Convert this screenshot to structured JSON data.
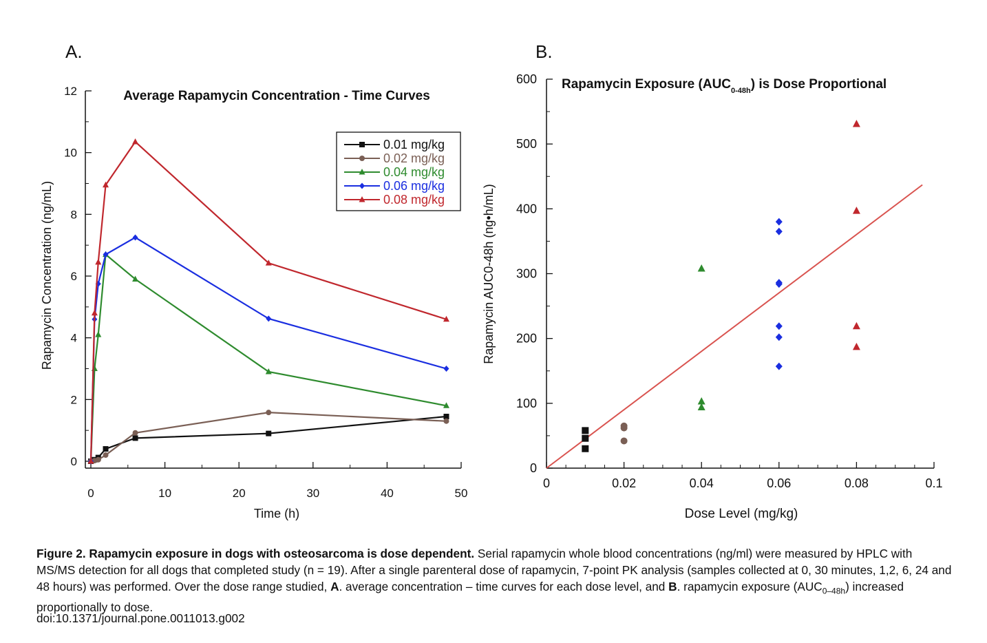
{
  "panel_a_label": "A.",
  "panel_b_label": "B.",
  "chart_data": [
    {
      "type": "line",
      "title": "Average Rapamycin Concentration - Time Curves",
      "xlabel": "Time (h)",
      "ylabel": "Rapamycin Concentration (ng/mL)",
      "xlim": [
        0,
        50
      ],
      "ylim": [
        0,
        12
      ],
      "xticks": [
        "0",
        "10",
        "20",
        "30",
        "40",
        "50"
      ],
      "yticks": [
        "0",
        "2",
        "4",
        "6",
        "8",
        "10",
        "12"
      ],
      "grid": false,
      "legend_position": "top-right",
      "x": [
        0,
        0.5,
        1,
        2,
        6,
        24,
        48
      ],
      "series": [
        {
          "name": "0.01 mg/kg",
          "color": "#111111",
          "marker": "square",
          "values": [
            0,
            0.05,
            0.12,
            0.4,
            0.75,
            0.9,
            1.45
          ]
        },
        {
          "name": "0.02 mg/kg",
          "color": "#7a5f55",
          "marker": "circle",
          "values": [
            0,
            0.02,
            0.05,
            0.2,
            0.92,
            1.58,
            1.3
          ]
        },
        {
          "name": "0.04 mg/kg",
          "color": "#2e8b2e",
          "marker": "triangle",
          "values": [
            0,
            3.0,
            4.1,
            6.7,
            5.9,
            2.9,
            1.8
          ]
        },
        {
          "name": "0.06 mg/kg",
          "color": "#1a2ee0",
          "marker": "diamond",
          "values": [
            0,
            4.6,
            5.75,
            6.7,
            7.25,
            4.62,
            3.0
          ]
        },
        {
          "name": "0.08 mg/kg",
          "color": "#c0272d",
          "marker": "triangle",
          "values": [
            0,
            4.8,
            6.45,
            8.95,
            10.35,
            6.42,
            4.6
          ]
        }
      ]
    },
    {
      "type": "scatter",
      "title_main": "Rapamycin Exposure (AUC",
      "title_sub": "0-48h",
      "title_end": ") is Dose Proportional",
      "xlabel": "Dose Level (mg/kg)",
      "ylabel": "Rapamycin AUC0-48h (ng•h/mL)",
      "xlim": [
        0,
        0.1
      ],
      "ylim": [
        0,
        600
      ],
      "xticks": [
        "0",
        "0.02",
        "0.04",
        "0.06",
        "0.08",
        "0.1"
      ],
      "yticks": [
        "0",
        "100",
        "200",
        "300",
        "400",
        "500",
        "600"
      ],
      "grid": false,
      "series": [
        {
          "dose": 0.01,
          "color": "#111111",
          "marker": "square",
          "values": [
            58,
            46,
            30
          ]
        },
        {
          "dose": 0.02,
          "color": "#7a5f55",
          "marker": "circle",
          "values": [
            65,
            62,
            42
          ]
        },
        {
          "dose": 0.04,
          "color": "#2e8b2e",
          "marker": "triangle",
          "values": [
            308,
            103,
            94
          ]
        },
        {
          "dose": 0.06,
          "color": "#1a2ee0",
          "marker": "diamond",
          "values": [
            380,
            365,
            286,
            284,
            219,
            202,
            157
          ]
        },
        {
          "dose": 0.08,
          "color": "#c0272d",
          "marker": "triangle",
          "values": [
            531,
            397,
            219,
            187
          ]
        }
      ],
      "fit_line": {
        "color": "#d9534f",
        "x": [
          0,
          0.097
        ],
        "y": [
          0,
          437
        ]
      }
    }
  ],
  "caption": {
    "bold": "Figure 2. Rapamycin exposure in dogs with osteosarcoma is dose dependent.",
    "part1": " Serial rapamycin whole blood concentrations (ng/ml) were measured by HPLC with MS/MS detection for all dogs that completed study (n = 19). After a single parenteral dose of rapamycin, 7-point PK analysis (samples collected at 0, 30 minutes, 1,2, 6, 24 and 48 hours) was performed. Over the dose range studied, ",
    "bold_a": "A",
    "part2": ". average concentration – time curves for each dose level, and ",
    "bold_b": "B",
    "part3": ". rapamycin exposure (AUC",
    "sub": "0–48h",
    "part4": ") increased proportionally to dose.",
    "doi": "doi:10.1371/journal.pone.0011013.g002"
  }
}
